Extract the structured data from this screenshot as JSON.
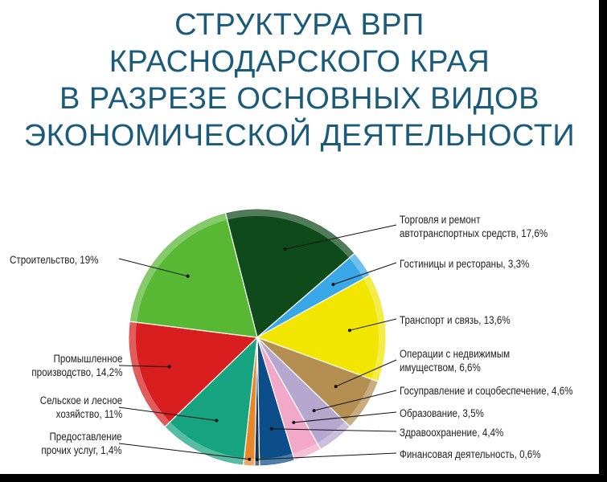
{
  "title_lines": [
    "СТРУКТУРА ВРП",
    "КРАСНОДАРСКОГО КРАЯ",
    "В РАЗРЕЗЕ ОСНОВНЫХ ВИДОВ",
    "ЭКОНОМИЧЕСКОЙ ДЕЯТЕЛЬНОСТИ"
  ],
  "chart_data": {
    "type": "pie",
    "unit": "%",
    "slices": [
      {
        "label": "Торговля и ремонт автотранспортных средств, 17,6%",
        "value": 17.6,
        "color": "#0f4a1a"
      },
      {
        "label": "Гостиницы и рестораны, 3,3%",
        "value": 3.3,
        "color": "#3aa7e6"
      },
      {
        "label": "Транспорт и связь, 13,6%",
        "value": 13.6,
        "color": "#f2e600"
      },
      {
        "label": "Операции с недвижимым имуществом, 6,6%",
        "value": 6.6,
        "color": "#b58e52"
      },
      {
        "label": "Госуправление и соцобеспечение, 4,6%",
        "value": 4.6,
        "color": "#b6a7cf"
      },
      {
        "label": "Образование, 3,5%",
        "value": 3.5,
        "color": "#f2a8c8"
      },
      {
        "label": "Здравоохранение, 4,4%",
        "value": 4.4,
        "color": "#0b4e8a"
      },
      {
        "label": "Финансовая деятельность, 0,6%",
        "value": 0.6,
        "color": "#17335a"
      },
      {
        "label": "Предоставление прочих услуг, 1,4%",
        "value": 1.4,
        "color": "#e8862a"
      },
      {
        "label": "Сельское и лесное хозяйство, 11%",
        "value": 11,
        "color": "#16a37f"
      },
      {
        "label": "Промышленное производство, 14,2%",
        "value": 14.2,
        "color": "#d81e1e"
      },
      {
        "label": "Строительство, 19%",
        "value": 19,
        "color": "#58b833"
      }
    ],
    "labels": {
      "trade": [
        "Торговля и ремонт",
        "автотранспортных средств, 17,6%"
      ],
      "hotels": [
        "Гостиницы и рестораны, 3,3%"
      ],
      "transport": [
        "Транспорт и связь, 13,6%"
      ],
      "realestate": [
        "Операции с недвижимым",
        "имуществом, 6,6%"
      ],
      "gov": [
        "Госуправление и соцобеспечение, 4,6%"
      ],
      "edu": [
        "Образование, 3,5%"
      ],
      "health": [
        "Здравоохранение, 4,4%"
      ],
      "finance": [
        "Финансовая деятельность, 0,6%"
      ],
      "other": [
        "Предоставление",
        "прочих услуг, 1,4%"
      ],
      "agri": [
        "Сельское и лесное",
        "хозяйство, 11%"
      ],
      "industry": [
        "Промышленное",
        "производство, 14,2%"
      ],
      "construction": [
        "Строительство, 19%"
      ]
    }
  }
}
